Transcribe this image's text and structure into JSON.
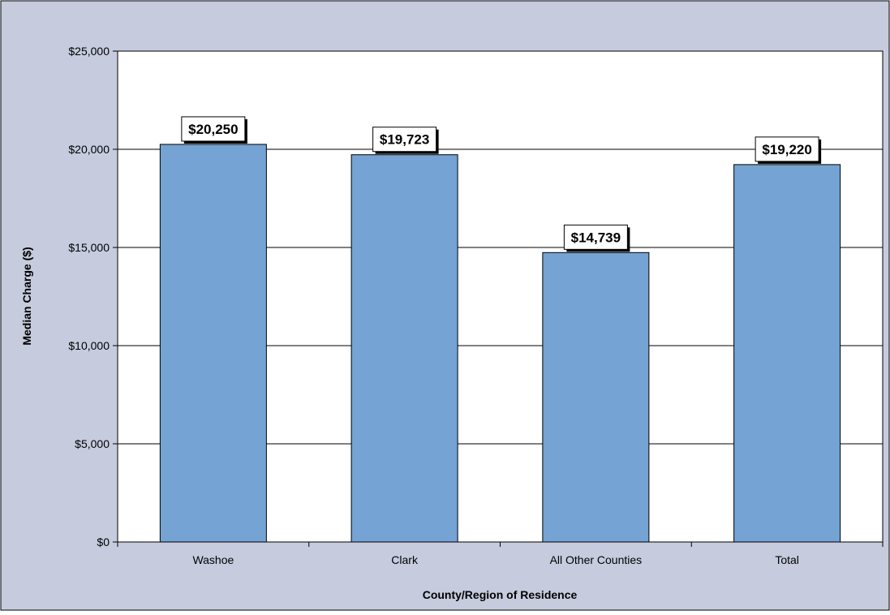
{
  "chart_data": {
    "type": "bar",
    "title": "",
    "xlabel": "County/Region of Residence",
    "ylabel": "Median Charge ($)",
    "categories": [
      "Washoe",
      "Clark",
      "All Other Counties",
      "Total"
    ],
    "values": [
      20250,
      19723,
      14739,
      19220
    ],
    "data_labels": [
      "$20,250",
      "$19,723",
      "$14,739",
      "$19,220"
    ],
    "ylim": [
      0,
      25000
    ],
    "y_ticks": [
      0,
      5000,
      10000,
      15000,
      20000,
      25000
    ],
    "y_tick_labels": [
      "$0",
      "$5,000",
      "$10,000",
      "$15,000",
      "$20,000",
      "$25,000"
    ],
    "grid": true,
    "legend": "none",
    "colors": {
      "background": "#c6ccde",
      "plot_area": "#ffffff",
      "bar_fill": "#74a3d4",
      "bar_stroke": "#000000",
      "gridline": "#000000"
    }
  }
}
